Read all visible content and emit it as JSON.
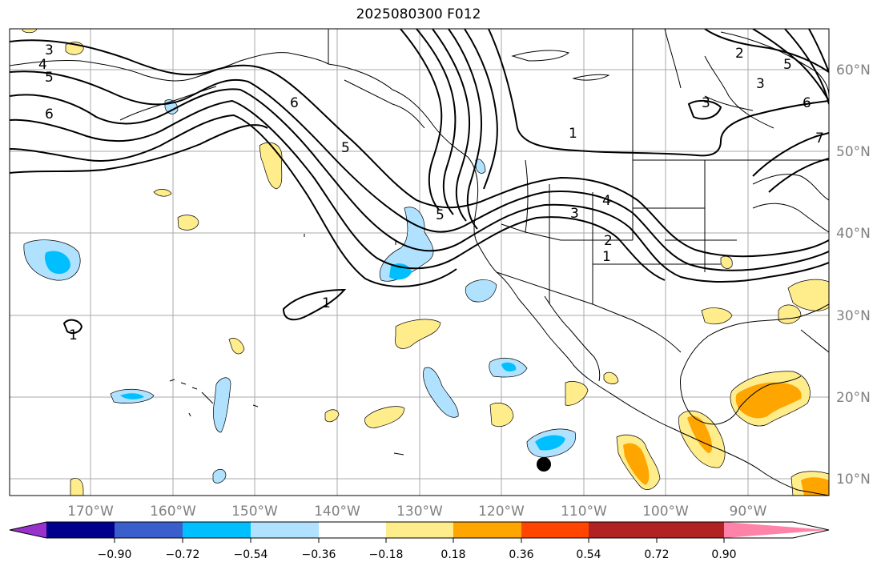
{
  "title": "2025080300 F012",
  "map": {
    "lon_labels": [
      "170°W",
      "160°W",
      "150°W",
      "140°W",
      "130°W",
      "120°W",
      "110°W",
      "100°W",
      "90°W"
    ],
    "lat_labels": [
      "60°N",
      "50°N",
      "40°N",
      "30°N",
      "20°N",
      "10°N"
    ],
    "contour_labels": [
      "3",
      "4",
      "5",
      "6",
      "6",
      "5",
      "5",
      "4",
      "3",
      "1",
      "1",
      "1",
      "1",
      "3",
      "2",
      "2",
      "3",
      "5",
      "6",
      "7"
    ],
    "marker": "storm-center-dot"
  },
  "colorbar": {
    "tick_labels": [
      "−0.90",
      "−0.72",
      "−0.54",
      "−0.36",
      "−0.18",
      "0.18",
      "0.36",
      "0.54",
      "0.72",
      "0.90"
    ],
    "colors": [
      "#9932CC",
      "#00008B",
      "#3A5FCD",
      "#00BFFF",
      "#B0E2FF",
      "#FFFFFF",
      "#FFEC8B",
      "#FFA500",
      "#FF4500",
      "#B22222",
      "#FF83A8"
    ],
    "extend": "both"
  }
}
